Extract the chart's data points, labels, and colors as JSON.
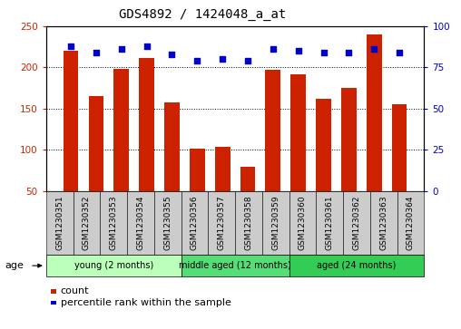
{
  "title": "GDS4892 / 1424048_a_at",
  "samples": [
    "GSM1230351",
    "GSM1230352",
    "GSM1230353",
    "GSM1230354",
    "GSM1230355",
    "GSM1230356",
    "GSM1230357",
    "GSM1230358",
    "GSM1230359",
    "GSM1230360",
    "GSM1230361",
    "GSM1230362",
    "GSM1230363",
    "GSM1230364"
  ],
  "counts": [
    220,
    165,
    198,
    212,
    158,
    101,
    104,
    79,
    197,
    192,
    162,
    175,
    240,
    155
  ],
  "percentile_ranks": [
    88,
    84,
    86,
    88,
    83,
    79,
    80,
    79,
    86,
    85,
    84,
    84,
    86,
    84
  ],
  "bar_color": "#cc2200",
  "dot_color": "#0000cc",
  "ylim_left": [
    50,
    250
  ],
  "ylim_right": [
    0,
    100
  ],
  "yticks_left": [
    50,
    100,
    150,
    200,
    250
  ],
  "yticks_right": [
    0,
    25,
    50,
    75,
    100
  ],
  "groups": [
    {
      "label": "young (2 months)",
      "start": 0,
      "end": 5,
      "color": "#bbffbb"
    },
    {
      "label": "middle aged (12 months)",
      "start": 5,
      "end": 9,
      "color": "#55dd77"
    },
    {
      "label": "aged (24 months)",
      "start": 9,
      "end": 14,
      "color": "#33cc55"
    }
  ],
  "age_label": "age",
  "legend_count_label": "count",
  "legend_pct_label": "percentile rank within the sample",
  "background_plot": "#ffffff",
  "background_xtick": "#cccccc",
  "title_fontsize": 10,
  "tick_fontsize": 7.5
}
